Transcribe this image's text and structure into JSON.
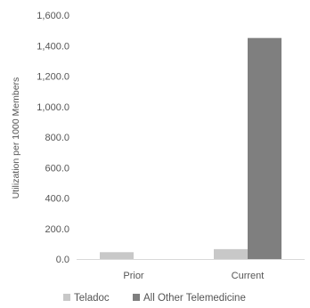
{
  "chart_data": {
    "type": "bar",
    "categories": [
      "Prior",
      "Current"
    ],
    "series": [
      {
        "name": "Teladoc",
        "values": [
          45,
          65
        ],
        "color": "#c8c8c8"
      },
      {
        "name": "All Other Telemedicine",
        "values": [
          0,
          1450
        ],
        "color": "#7f7f7f"
      }
    ],
    "ylabel": "Utilization per 1000 Members",
    "ylim": [
      0,
      1600
    ],
    "yticks": [
      "0.0",
      "200.0",
      "400.0",
      "600.0",
      "800.0",
      "1,000.0",
      "1,200.0",
      "1,400.0",
      "1,600.0"
    ],
    "grid": false,
    "legend": "bottom"
  }
}
